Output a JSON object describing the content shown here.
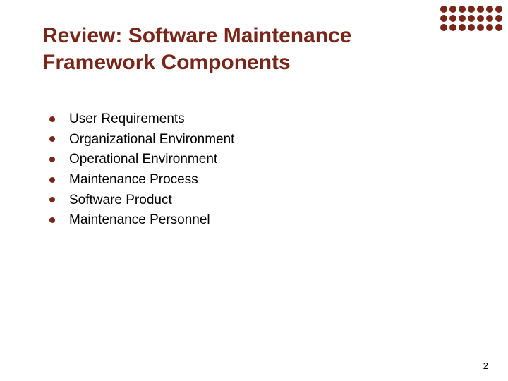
{
  "title": "Review: Software Maintenance Framework Components",
  "bullets": [
    "User Requirements",
    "Organizational Environment",
    "Operational Environment",
    "Maintenance Process",
    "Software Product",
    "Maintenance Personnel"
  ],
  "pageNumber": "2",
  "colors": {
    "accent": "#7a2518",
    "text": "#000000",
    "background": "#ffffff"
  },
  "decoration": {
    "dotRows": 3,
    "dotCols": 7
  }
}
